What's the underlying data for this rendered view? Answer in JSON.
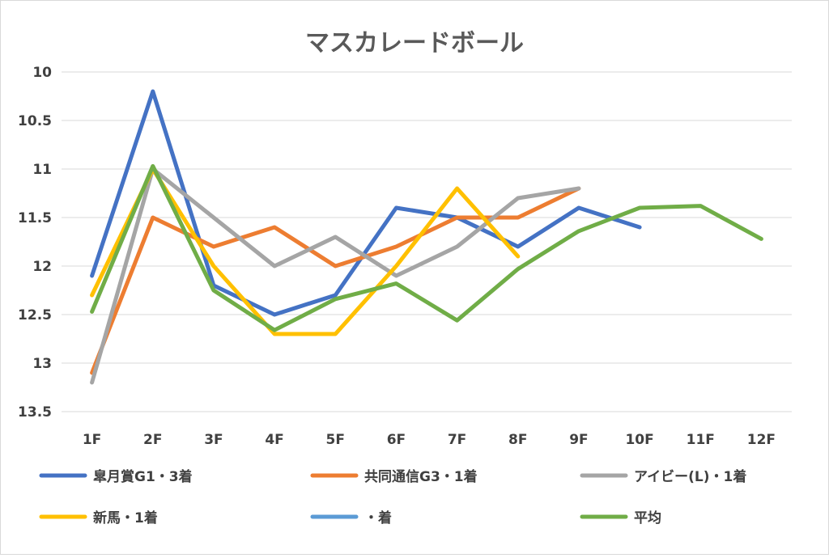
{
  "chart_data": {
    "type": "line",
    "title": "マスカレードボール",
    "categories": [
      "1F",
      "2F",
      "3F",
      "4F",
      "5F",
      "6F",
      "7F",
      "8F",
      "9F",
      "10F",
      "11F",
      "12F"
    ],
    "y_ticks": [
      "10",
      "10.5",
      "11",
      "11.5",
      "12",
      "12.5",
      "13",
      "13.5"
    ],
    "ylim": [
      10,
      13.5
    ],
    "y_axis_reversed": true,
    "grid": true,
    "legend_position": "bottom",
    "series": [
      {
        "name": "皐月賞G1・3着",
        "color": "#4472c4",
        "values": [
          12.1,
          10.2,
          12.2,
          12.5,
          12.3,
          11.4,
          11.5,
          11.8,
          11.4,
          11.6,
          null,
          null
        ]
      },
      {
        "name": "共同通信G3・1着",
        "color": "#ed7d31",
        "values": [
          13.1,
          11.5,
          11.8,
          11.6,
          12.0,
          11.8,
          11.5,
          11.5,
          11.2,
          null,
          null,
          null
        ]
      },
      {
        "name": "アイビー(L)・1着",
        "color": "#a5a5a5",
        "values": [
          13.2,
          11.0,
          11.5,
          12.0,
          11.7,
          12.1,
          11.8,
          11.3,
          11.2,
          null,
          null,
          null
        ]
      },
      {
        "name": "新馬・1着",
        "color": "#ffc000",
        "values": [
          12.3,
          11.0,
          12.0,
          12.7,
          12.7,
          12.0,
          11.2,
          11.9,
          null,
          null,
          null,
          null
        ]
      },
      {
        "name": "・着",
        "color": "#5b9bd5",
        "values": [
          null,
          null,
          null,
          null,
          null,
          null,
          null,
          null,
          null,
          null,
          null,
          null
        ]
      },
      {
        "name": "平均",
        "color": "#70ad47",
        "values": [
          12.47,
          10.97,
          12.25,
          12.66,
          12.34,
          12.18,
          12.56,
          12.03,
          11.64,
          11.4,
          11.38,
          11.72
        ]
      }
    ]
  }
}
